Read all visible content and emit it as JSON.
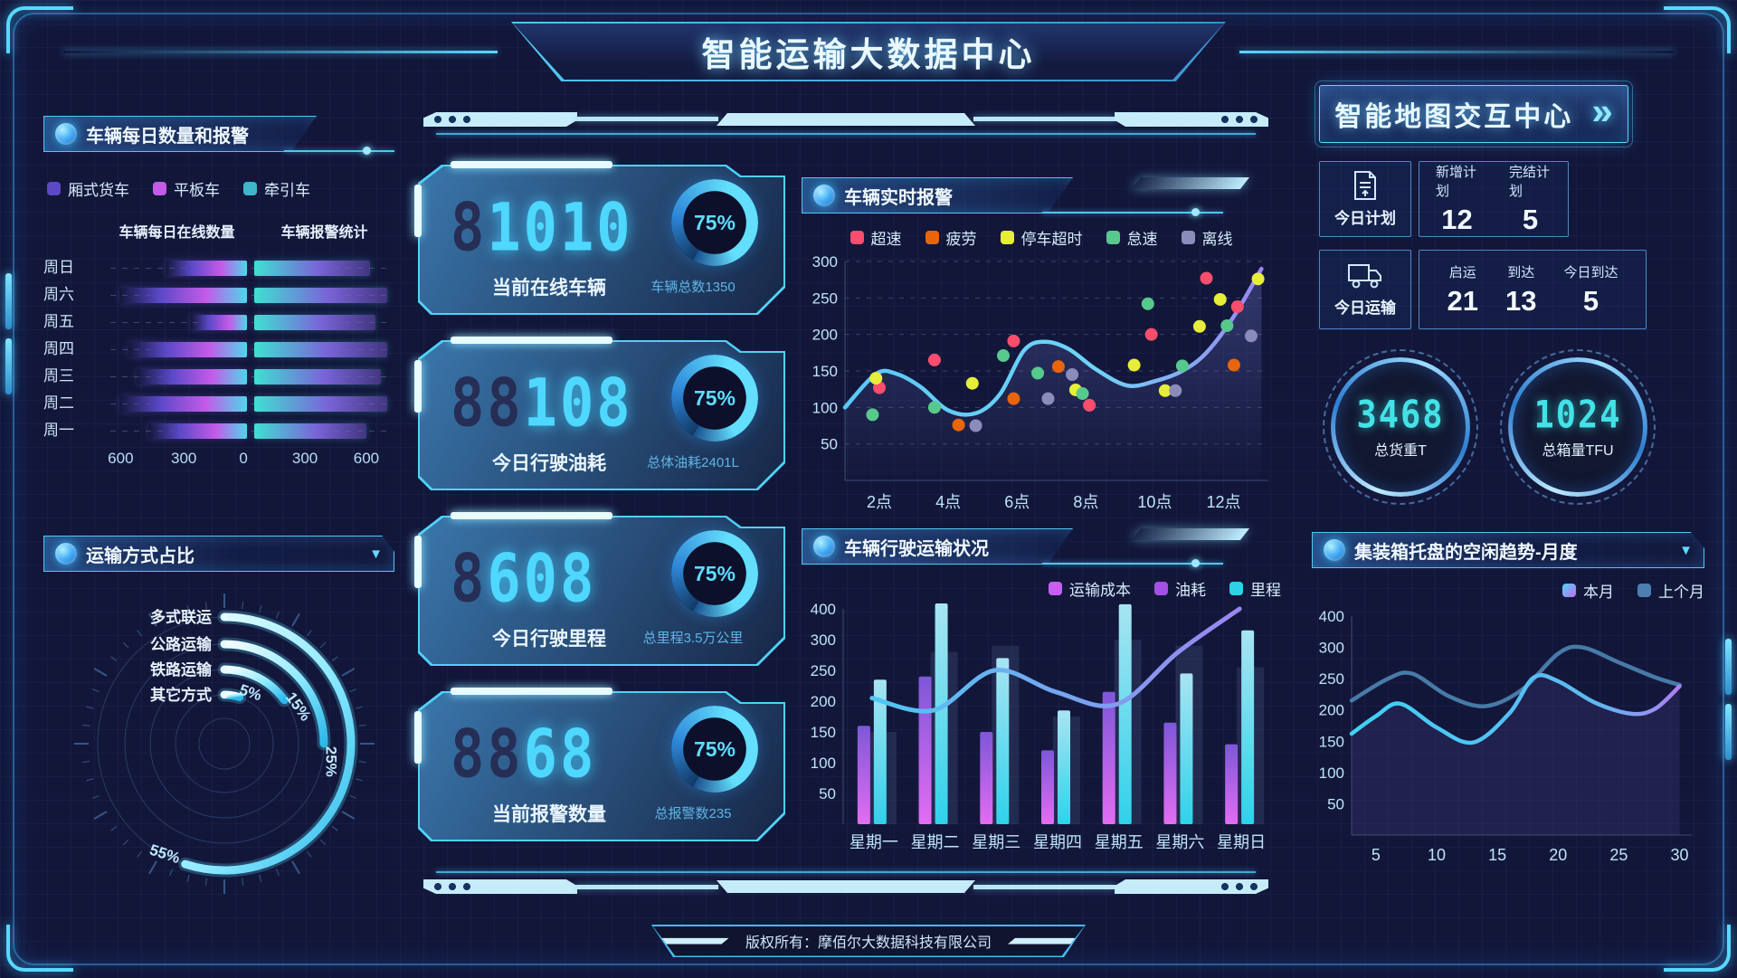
{
  "header": {
    "title": "智能运输大数据中心"
  },
  "footer": {
    "copyright": "版权所有：摩佰尔大数据科技有限公司"
  },
  "panels": {
    "daily": "车辆每日数量和报警",
    "mode": "运输方式占比",
    "alarm": "车辆实时报警",
    "weekly": "车辆行驶运输状况",
    "trend": "集装箱托盘的空闲趋势-月度"
  },
  "cards": [
    {
      "ghost": "8",
      "value": "1010",
      "label": "当前在线车辆",
      "percent": "75%",
      "sub": "车辆总数1350"
    },
    {
      "ghost": "88",
      "value": "108",
      "label": "今日行驶油耗",
      "percent": "75%",
      "sub": "总体油耗2401L"
    },
    {
      "ghost": "8",
      "value": "608",
      "label": "今日行驶里程",
      "percent": "75%",
      "sub": "总里程3.5万公里"
    },
    {
      "ghost": "88",
      "value": "68",
      "label": "当前报警数量",
      "percent": "75%",
      "sub": "总报警数235"
    }
  ],
  "right": {
    "map_title": "智能地图交互中心",
    "map_chevron": "»",
    "plan": {
      "label": "今日计划",
      "stats": [
        {
          "label": "新增计划",
          "value": "12"
        },
        {
          "label": "完结计划",
          "value": "5"
        }
      ]
    },
    "transport": {
      "label": "今日运输",
      "stats": [
        {
          "label": "启运",
          "value": "21"
        },
        {
          "label": "到达",
          "value": "13"
        },
        {
          "label": "今日到达",
          "value": "5"
        }
      ]
    },
    "gauges": [
      {
        "value": "3468",
        "label": "总货重T"
      },
      {
        "value": "1024",
        "label": "总箱量TFU"
      }
    ]
  },
  "colors": {
    "accent": "#4fd2f7",
    "digit": "#4fd8ff",
    "bg": "#12173a"
  },
  "chart_data": {
    "daily": {
      "type": "bar",
      "orientation": "horizontal-bidirectional",
      "categories": [
        "周日",
        "周六",
        "周五",
        "周四",
        "周三",
        "周二",
        "周一"
      ],
      "subtitles": [
        "车辆每日在线数量",
        "车辆报警统计"
      ],
      "legend": [
        {
          "label": "厢式货车",
          "color": "#5b49c8"
        },
        {
          "label": "平板车",
          "color": "#c45ae8"
        },
        {
          "label": "牵引车",
          "color": "#3fb6c9"
        }
      ],
      "series": [
        {
          "name": "车辆每日在线数量",
          "values": [
            385,
            600,
            265,
            560,
            520,
            600,
            465
          ]
        },
        {
          "name": "车辆报警统计",
          "values": [
            545,
            625,
            570,
            625,
            595,
            625,
            530
          ]
        }
      ],
      "axis_ticks": [
        "600",
        "300",
        "0",
        "300",
        "600"
      ],
      "max": 660
    },
    "mode": {
      "type": "radial",
      "items": [
        {
          "label": "多式联运",
          "pct": 55
        },
        {
          "label": "公路运输",
          "pct": 25
        },
        {
          "label": "铁路运输",
          "pct": 15
        },
        {
          "label": "其它方式",
          "pct": 5
        }
      ]
    },
    "alarm": {
      "type": "scatter-line",
      "x_ticks": [
        "2点",
        "4点",
        "6点",
        "8点",
        "10点",
        "12点"
      ],
      "x_tick_hours": [
        2,
        4,
        6,
        8,
        10,
        12
      ],
      "xlim": [
        1,
        13.3
      ],
      "ylim": [
        0,
        300
      ],
      "y_ticks": [
        50,
        100,
        150,
        200,
        250,
        300
      ],
      "line": {
        "points": [
          [
            1,
            100
          ],
          [
            1.9,
            146
          ],
          [
            2.5,
            146
          ],
          [
            3.2,
            128
          ],
          [
            4,
            96
          ],
          [
            4.8,
            92
          ],
          [
            5.5,
            118
          ],
          [
            6.2,
            178
          ],
          [
            6.8,
            190
          ],
          [
            7.5,
            180
          ],
          [
            8.3,
            152
          ],
          [
            9.2,
            130
          ],
          [
            10,
            136
          ],
          [
            10.8,
            150
          ],
          [
            11.5,
            175
          ],
          [
            12.3,
            225
          ],
          [
            13.1,
            290
          ]
        ]
      },
      "series": [
        {
          "name": "超速",
          "color": "#fb4d6d",
          "points": [
            [
              2.0,
              127
            ],
            [
              3.6,
              165
            ],
            [
              5.9,
              191
            ],
            [
              8.1,
              103
            ],
            [
              9.9,
              200
            ],
            [
              11.5,
              277
            ],
            [
              12.4,
              238
            ]
          ]
        },
        {
          "name": "疲劳",
          "color": "#e8650c",
          "points": [
            [
              4.3,
              76
            ],
            [
              5.9,
              112
            ],
            [
              7.2,
              156
            ],
            [
              12.3,
              158
            ]
          ]
        },
        {
          "name": "停车超时",
          "color": "#e6ee3a",
          "points": [
            [
              1.9,
              140
            ],
            [
              4.7,
              133
            ],
            [
              7.7,
              124
            ],
            [
              9.4,
              158
            ],
            [
              10.3,
              123
            ],
            [
              11.3,
              211
            ],
            [
              11.9,
              248
            ],
            [
              13.0,
              276
            ]
          ]
        },
        {
          "name": "怠速",
          "color": "#57c98c",
          "points": [
            [
              1.8,
              90
            ],
            [
              3.6,
              100
            ],
            [
              5.6,
              171
            ],
            [
              6.6,
              147
            ],
            [
              7.9,
              119
            ],
            [
              9.8,
              242
            ],
            [
              10.8,
              157
            ],
            [
              12.1,
              212
            ]
          ]
        },
        {
          "name": "离线",
          "color": "#8a8cba",
          "points": [
            [
              4.8,
              75
            ],
            [
              6.9,
              112
            ],
            [
              7.6,
              145
            ],
            [
              10.6,
              123
            ],
            [
              12.8,
              198
            ]
          ]
        }
      ]
    },
    "weekly": {
      "type": "bar-line",
      "categories": [
        "星期一",
        "星期二",
        "星期三",
        "星期四",
        "星期五",
        "星期六",
        "星期日"
      ],
      "y_ticks": [
        50,
        100,
        150,
        200,
        250,
        300,
        400
      ],
      "legend": [
        {
          "label": "运输成本",
          "color": "#c75ff0"
        },
        {
          "label": "油耗",
          "color": "#a44fe8"
        },
        {
          "label": "里程",
          "color": "#2fd0e8"
        }
      ],
      "series": {
        "cost": [
          160,
          240,
          150,
          120,
          215,
          165,
          130
        ],
        "fuel": [
          150,
          280,
          290,
          175,
          300,
          290,
          255
        ],
        "mileage": [
          235,
          430,
          270,
          185,
          415,
          245,
          330
        ],
        "trend": [
          205,
          185,
          250,
          215,
          195,
          280,
          400
        ]
      }
    },
    "pallet": {
      "type": "line",
      "x_ticks": [
        5,
        10,
        15,
        20,
        25,
        30
      ],
      "xlim": [
        3,
        31
      ],
      "y_ticks": [
        50,
        100,
        150,
        200,
        250,
        300,
        400
      ],
      "legend": [
        {
          "label": "本月",
          "color": "#4fd4f7",
          "color2": "#c06df2"
        },
        {
          "label": "上个月",
          "color": "#4c7fae"
        }
      ],
      "series": [
        {
          "name": "本月",
          "points": [
            [
              3,
              162
            ],
            [
              5,
              190
            ],
            [
              7,
              210
            ],
            [
              10,
              172
            ],
            [
              13,
              148
            ],
            [
              16,
              195
            ],
            [
              18,
              252
            ],
            [
              20,
              246
            ],
            [
              23,
              212
            ],
            [
              26,
              194
            ],
            [
              28,
              202
            ],
            [
              30,
              238
            ]
          ]
        },
        {
          "name": "上个月",
          "points": [
            [
              3,
              215
            ],
            [
              6,
              250
            ],
            [
              8,
              258
            ],
            [
              11,
              222
            ],
            [
              14,
              206
            ],
            [
              17,
              232
            ],
            [
              20,
              290
            ],
            [
              22,
              300
            ],
            [
              25,
              276
            ],
            [
              28,
              252
            ],
            [
              30,
              240
            ]
          ]
        }
      ]
    }
  }
}
